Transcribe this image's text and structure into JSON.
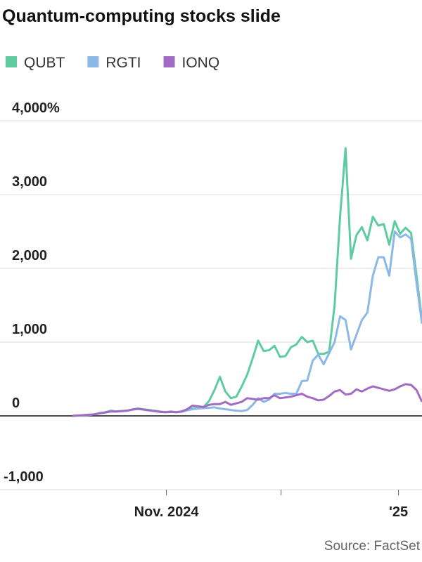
{
  "chart_data": {
    "type": "line",
    "title": "Quantum-computing stocks slide",
    "source": "Source: FactSet",
    "legend": "top-left",
    "grid": true,
    "ylim": [
      -1000,
      4000
    ],
    "yticks": [
      {
        "value": -1000,
        "label": "-1,000"
      },
      0,
      {
        "value": 1000,
        "label": "1,000"
      },
      {
        "value": 2000,
        "label": "2,000"
      },
      {
        "value": 3000,
        "label": "3,000"
      },
      {
        "value": 4000,
        "label": "4,000%"
      }
    ],
    "xlim": [
      0,
      64
    ],
    "xticks": [
      {
        "value": 17.2,
        "label": "Nov. 2024"
      },
      {
        "value": 38.2
      },
      {
        "value": 59.7,
        "label": "'25"
      }
    ],
    "series": [
      {
        "name": "QUBT",
        "color": "#5ecba1",
        "values": [
          0,
          5,
          10,
          15,
          20,
          40,
          50,
          70,
          60,
          65,
          70,
          90,
          100,
          90,
          80,
          70,
          60,
          50,
          60,
          50,
          60,
          80,
          100,
          110,
          120,
          200,
          350,
          530,
          330,
          240,
          260,
          400,
          560,
          780,
          1020,
          880,
          890,
          950,
          800,
          810,
          930,
          970,
          1070,
          1000,
          1020,
          840,
          840,
          870,
          1500,
          2700,
          3630,
          2130,
          2450,
          2560,
          2380,
          2700,
          2580,
          2600,
          2320,
          2640,
          2470,
          2550,
          2480,
          1900,
          1300
        ]
      },
      {
        "name": "RGTI",
        "color": "#8bb8e6",
        "values": [
          0,
          3,
          8,
          12,
          20,
          35,
          45,
          60,
          60,
          62,
          70,
          85,
          95,
          85,
          75,
          65,
          55,
          50,
          55,
          50,
          55,
          75,
          90,
          100,
          105,
          110,
          115,
          100,
          90,
          80,
          70,
          65,
          80,
          150,
          240,
          190,
          220,
          300,
          300,
          310,
          300,
          300,
          470,
          480,
          750,
          830,
          700,
          850,
          1000,
          1350,
          1300,
          900,
          1100,
          1300,
          1400,
          1900,
          2150,
          2150,
          1900,
          2500,
          2420,
          2460,
          2400,
          1800,
          1250
        ]
      },
      {
        "name": "IONQ",
        "color": "#a26cc4",
        "values": [
          0,
          5,
          10,
          15,
          20,
          35,
          45,
          60,
          60,
          65,
          70,
          85,
          95,
          85,
          75,
          65,
          55,
          50,
          55,
          50,
          60,
          90,
          140,
          130,
          120,
          150,
          160,
          160,
          190,
          150,
          170,
          190,
          240,
          230,
          220,
          240,
          240,
          280,
          240,
          250,
          260,
          280,
          300,
          260,
          240,
          210,
          220,
          270,
          330,
          350,
          290,
          300,
          360,
          330,
          370,
          400,
          380,
          360,
          340,
          360,
          400,
          430,
          420,
          350,
          190
        ]
      }
    ]
  }
}
